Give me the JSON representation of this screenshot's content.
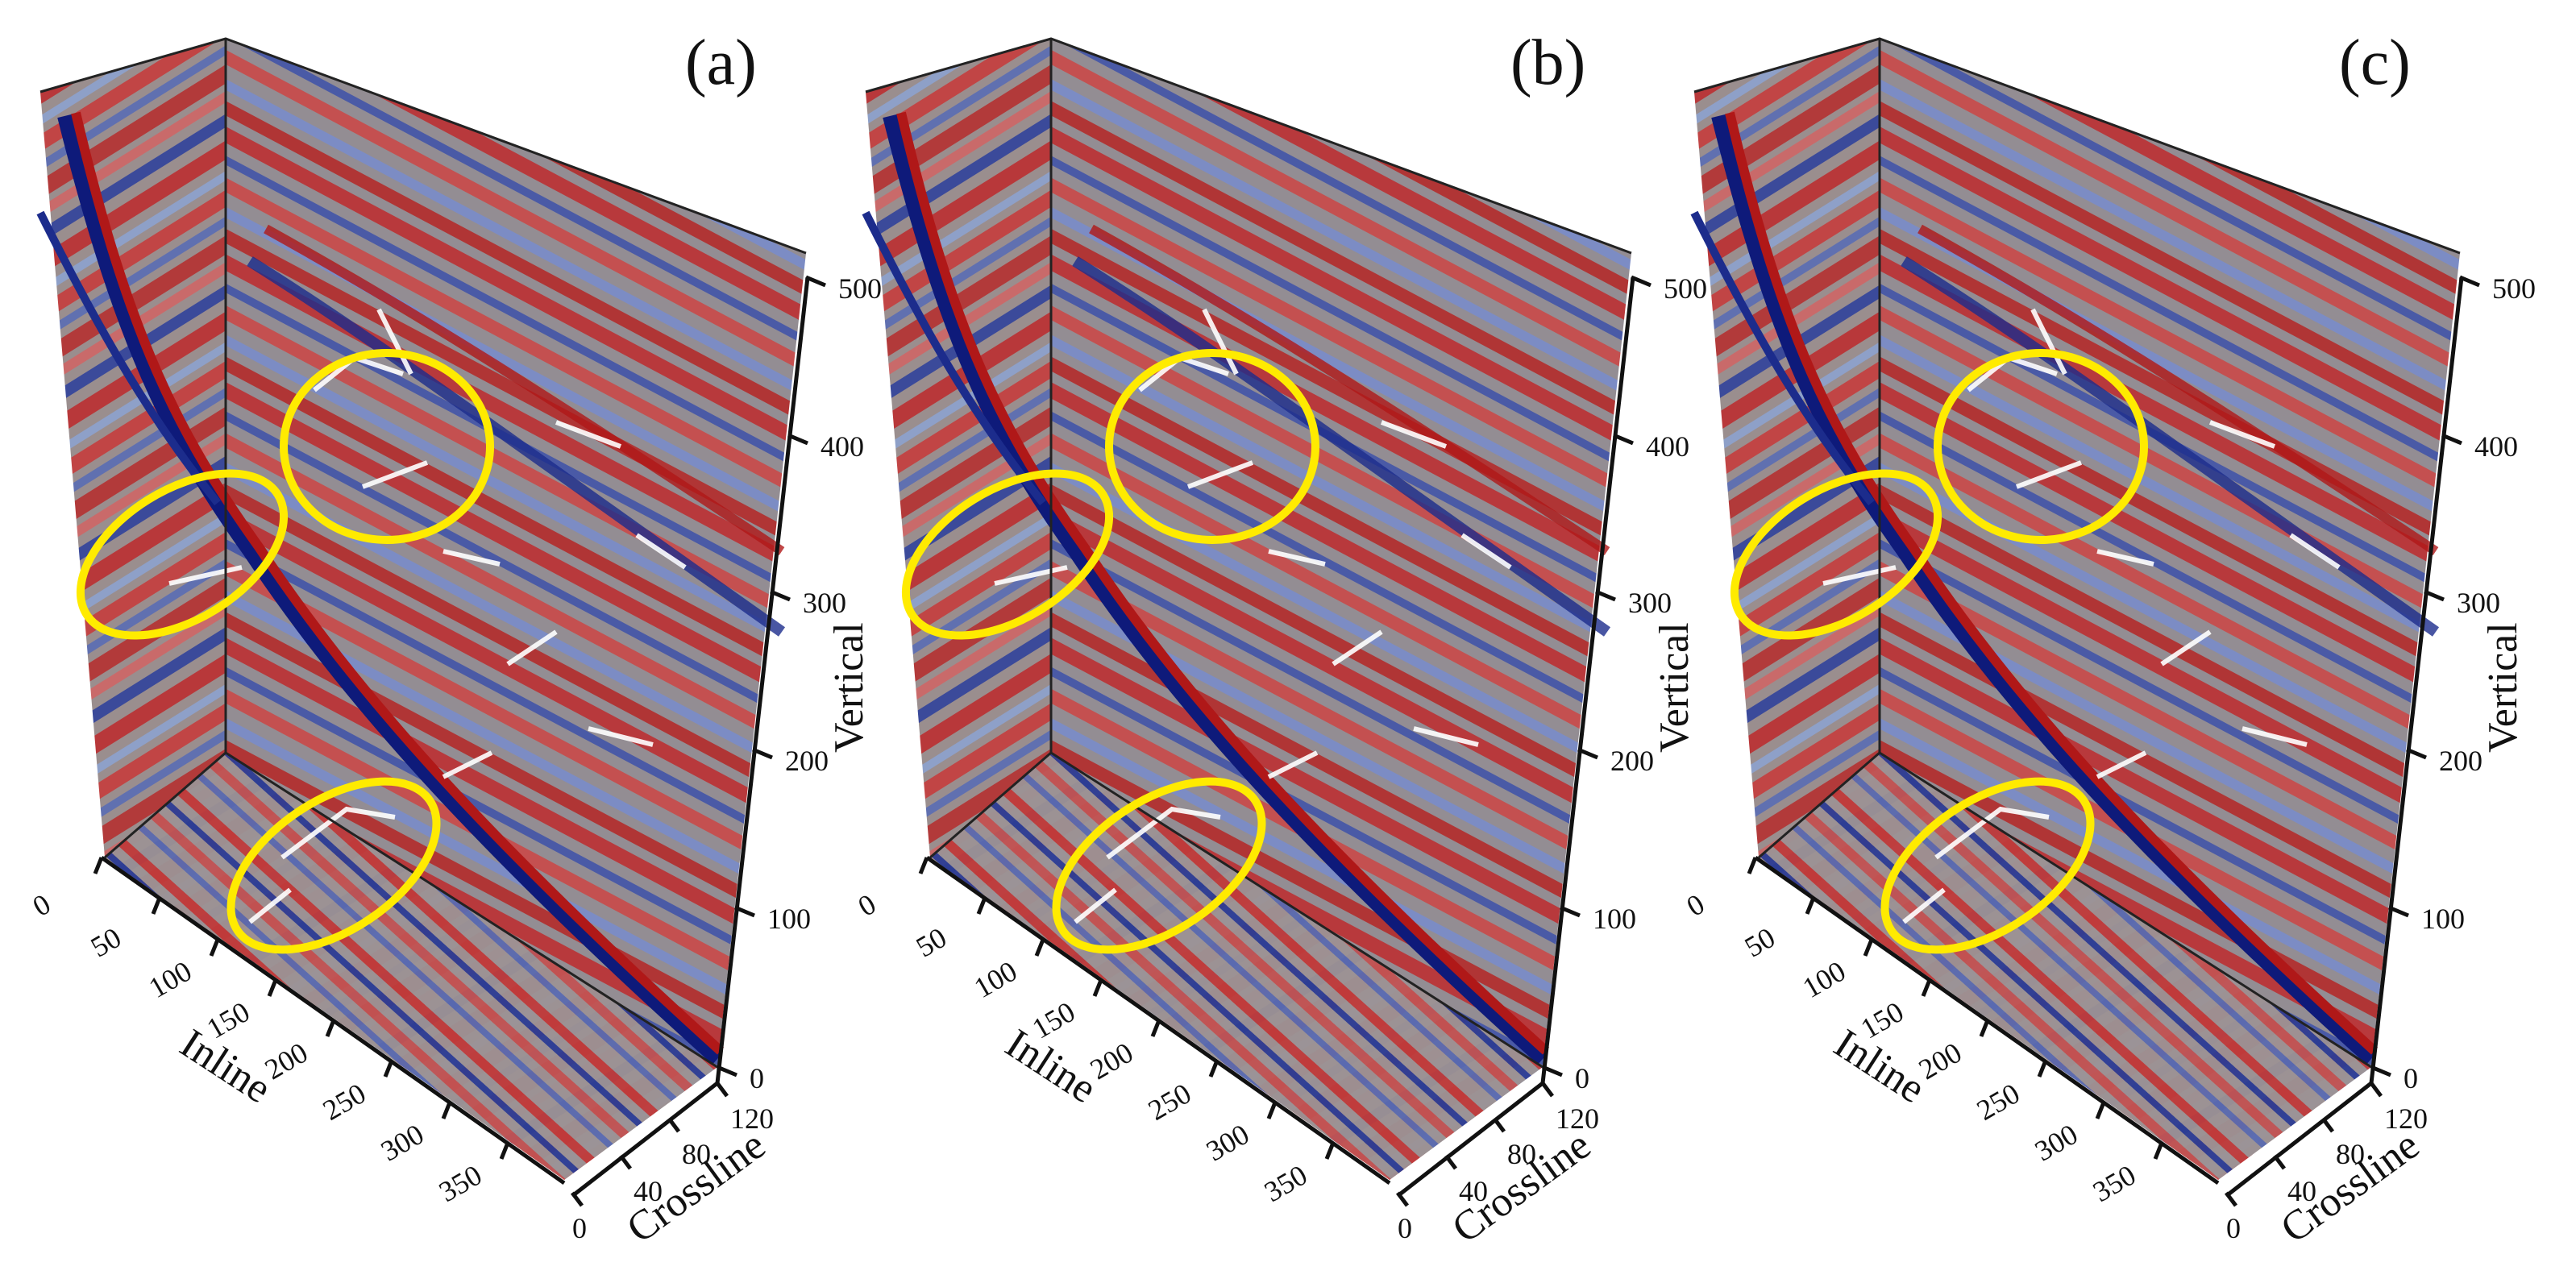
{
  "panels": [
    {
      "id": "a",
      "label": "(a)"
    },
    {
      "id": "b",
      "label": "(b)"
    },
    {
      "id": "c",
      "label": "(c)"
    }
  ],
  "axes": {
    "inline": {
      "title": "Inline",
      "ticks": [
        "0",
        "50",
        "100",
        "150",
        "200",
        "250",
        "300",
        "350"
      ]
    },
    "crossline": {
      "title": "Crossline",
      "ticks": [
        "0",
        "40",
        "80",
        "120"
      ]
    },
    "vertical": {
      "title": "Vertical",
      "ticks": [
        "0",
        "100",
        "200",
        "300",
        "400",
        "500"
      ]
    }
  },
  "highlight_color": "#ffeb00",
  "colormap": {
    "positive": "#c0171b",
    "zero": "#8c8c8c",
    "negative": "#1c2c8c"
  }
}
